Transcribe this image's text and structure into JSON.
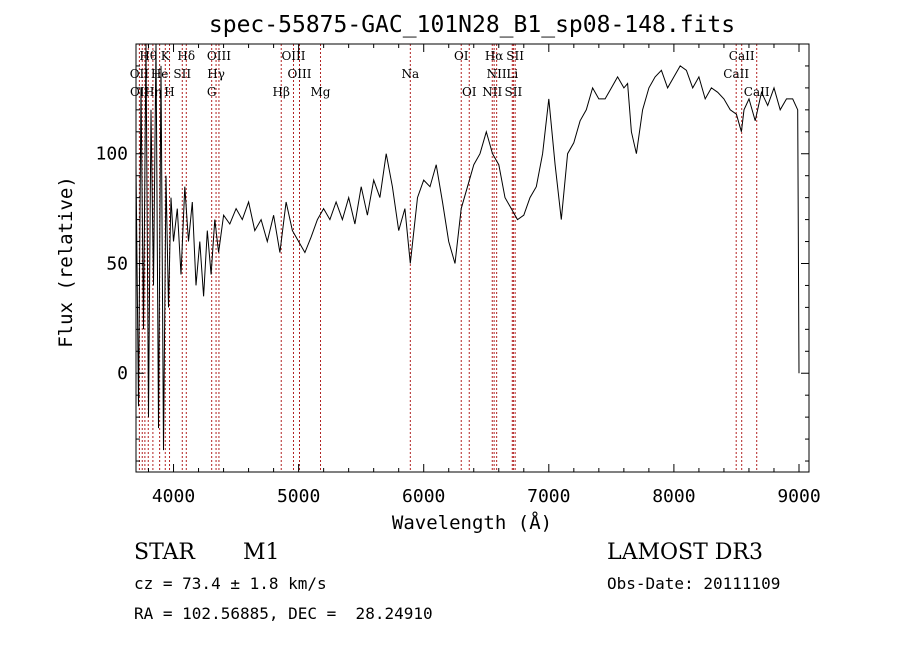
{
  "chart_data": {
    "type": "line",
    "title": "spec-55875-GAC_101N28_B1_sp08-148.fits",
    "xlabel": "Wavelength (Å)",
    "ylabel": "Flux (relative)",
    "xlim": [
      3700,
      9080
    ],
    "ylim": [
      -45,
      150
    ],
    "xticks": [
      4000,
      5000,
      6000,
      7000,
      8000,
      9000
    ],
    "yticks": [
      0,
      50,
      100
    ],
    "grid": false,
    "line_color": "#000000",
    "marker_color": "#b22222",
    "series": [
      {
        "x": [
          3700,
          3720,
          3740,
          3760,
          3780,
          3800,
          3820,
          3840,
          3860,
          3880,
          3900,
          3920,
          3940,
          3960,
          3980,
          4000,
          4030,
          4060,
          4090,
          4120,
          4150,
          4180,
          4210,
          4240,
          4270,
          4300,
          4330,
          4360,
          4400,
          4450,
          4500,
          4550,
          4600,
          4650,
          4700,
          4750,
          4800,
          4850,
          4900,
          4950,
          5000,
          5050,
          5100,
          5150,
          5200,
          5250,
          5300,
          5350,
          5400,
          5450,
          5500,
          5550,
          5600,
          5650,
          5700,
          5750,
          5800,
          5850,
          5893,
          5950,
          6000,
          6050,
          6100,
          6150,
          6200,
          6250,
          6300,
          6350,
          6400,
          6450,
          6500,
          6550,
          6600,
          6650,
          6700,
          6750,
          6800,
          6850,
          6900,
          6950,
          7000,
          7050,
          7100,
          7150,
          7200,
          7250,
          7300,
          7350,
          7400,
          7450,
          7500,
          7550,
          7600,
          7630,
          7660,
          7700,
          7750,
          7800,
          7850,
          7900,
          7950,
          8000,
          8050,
          8100,
          8150,
          8200,
          8250,
          8300,
          8350,
          8400,
          8450,
          8500,
          8540,
          8560,
          8600,
          8650,
          8700,
          8750,
          8800,
          8850,
          8900,
          8950,
          8990,
          9000,
          9000
        ],
        "y": [
          95,
          -15,
          130,
          20,
          150,
          -20,
          120,
          40,
          150,
          -25,
          140,
          -35,
          90,
          30,
          80,
          60,
          75,
          45,
          85,
          60,
          78,
          40,
          60,
          35,
          65,
          45,
          70,
          55,
          72,
          68,
          75,
          70,
          78,
          65,
          70,
          60,
          72,
          55,
          78,
          65,
          60,
          55,
          62,
          70,
          75,
          70,
          78,
          70,
          80,
          68,
          85,
          72,
          88,
          80,
          100,
          85,
          65,
          75,
          50,
          80,
          88,
          85,
          95,
          78,
          60,
          50,
          75,
          85,
          95,
          100,
          110,
          100,
          95,
          80,
          75,
          70,
          72,
          80,
          85,
          100,
          125,
          95,
          70,
          100,
          105,
          115,
          120,
          130,
          125,
          125,
          130,
          135,
          130,
          132,
          110,
          100,
          120,
          130,
          135,
          138,
          130,
          135,
          140,
          138,
          130,
          135,
          125,
          130,
          128,
          125,
          120,
          118,
          110,
          120,
          125,
          115,
          128,
          122,
          130,
          120,
          125,
          125,
          120,
          0,
          0
        ]
      }
    ],
    "line_labels": [
      {
        "text": "Hθ",
        "x": 3798,
        "row": 0
      },
      {
        "text": "K",
        "x": 3934,
        "row": 0
      },
      {
        "text": "Hδ",
        "x": 4102,
        "row": 0
      },
      {
        "text": "OIII",
        "x": 4363,
        "row": 0
      },
      {
        "text": "OIII",
        "x": 4959,
        "row": 0
      },
      {
        "text": "OI",
        "x": 6300,
        "row": 0
      },
      {
        "text": "Hα",
        "x": 6563,
        "row": 0
      },
      {
        "text": "SII",
        "x": 6731,
        "row": 0
      },
      {
        "text": "CaII",
        "x": 8542,
        "row": 0
      },
      {
        "text": "OII",
        "x": 3727,
        "row": 1
      },
      {
        "text": "He",
        "x": 3889,
        "row": 1
      },
      {
        "text": "SII",
        "x": 4070,
        "row": 1
      },
      {
        "text": "Hγ",
        "x": 4340,
        "row": 1
      },
      {
        "text": "OIII",
        "x": 5007,
        "row": 1
      },
      {
        "text": "Na",
        "x": 5893,
        "row": 1
      },
      {
        "text": "NII",
        "x": 6583,
        "row": 1
      },
      {
        "text": "Li",
        "x": 6708,
        "row": 1
      },
      {
        "text": "CaII",
        "x": 8498,
        "row": 1
      },
      {
        "text": "OII",
        "x": 3729,
        "row": 2
      },
      {
        "text": "Hη",
        "x": 3835,
        "row": 2
      },
      {
        "text": "H",
        "x": 3968,
        "row": 2
      },
      {
        "text": "G",
        "x": 4305,
        "row": 2
      },
      {
        "text": "Hβ",
        "x": 4861,
        "row": 2
      },
      {
        "text": "Mg",
        "x": 5175,
        "row": 2
      },
      {
        "text": "OI",
        "x": 6364,
        "row": 2
      },
      {
        "text": "NII",
        "x": 6548,
        "row": 2
      },
      {
        "text": "SII",
        "x": 6717,
        "row": 2
      },
      {
        "text": "CaII",
        "x": 8662,
        "row": 2
      }
    ],
    "line_positions": [
      3727,
      3750,
      3771,
      3798,
      3835,
      3889,
      3934,
      3968,
      4070,
      4102,
      4305,
      4340,
      4363,
      4861,
      4959,
      5007,
      5175,
      5893,
      6300,
      6364,
      6548,
      6563,
      6583,
      6708,
      6717,
      6731,
      8498,
      8542,
      8662
    ]
  },
  "info": {
    "object_type": "STAR",
    "subclass": "M1",
    "survey": "LAMOST DR3",
    "cz": "cz = 73.4 ± 1.8 km/s",
    "obs_date": "Obs-Date: 20111109",
    "radec": "RA = 102.56885, DEC =  28.24910"
  }
}
